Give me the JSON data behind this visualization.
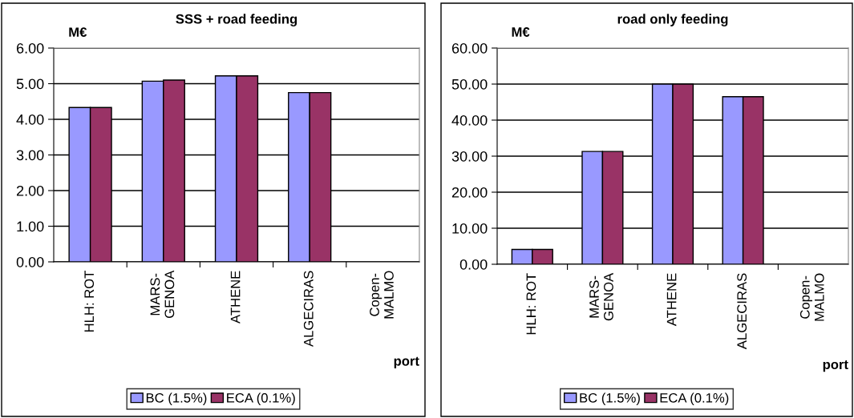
{
  "chart_data": [
    {
      "type": "bar",
      "title": "SSS + road feeding",
      "ylabel": "M€",
      "xlabel": "port",
      "categories": [
        "HLH: ROT",
        "MARS-\nGENOA",
        "ATHENE",
        "ALGECIRAS",
        "Copen-\nMALMO"
      ],
      "series": [
        {
          "name": "BC (1.5%)",
          "color": "#9999ff",
          "values": [
            4.33,
            5.07,
            5.22,
            4.75,
            null
          ]
        },
        {
          "name": "ECA (0.1%)",
          "color": "#993366",
          "values": [
            4.33,
            5.1,
            5.22,
            4.75,
            null
          ]
        }
      ],
      "ylim": [
        0,
        6
      ],
      "yticks": [
        {
          "value": 0,
          "label": "0.00"
        },
        {
          "value": 1,
          "label": "1.00"
        },
        {
          "value": 2,
          "label": "2.00"
        },
        {
          "value": 3,
          "label": "3.00"
        },
        {
          "value": 4,
          "label": "4.00"
        },
        {
          "value": 5,
          "label": "5.00"
        },
        {
          "value": 6,
          "label": "6.00"
        }
      ],
      "grid": "y",
      "legend": "bottom"
    },
    {
      "type": "bar",
      "title": "road only feeding",
      "ylabel": "M€",
      "xlabel": "port",
      "categories": [
        "HLH: ROT",
        "MARS-\nGENOA",
        "ATHENE",
        "ALGECIRAS",
        "Copen-\nMALMO"
      ],
      "series": [
        {
          "name": "BC (1.5%)",
          "color": "#9999ff",
          "values": [
            4.1,
            31.3,
            50.0,
            46.5,
            null
          ]
        },
        {
          "name": "ECA (0.1%)",
          "color": "#993366",
          "values": [
            4.1,
            31.3,
            50.0,
            46.5,
            null
          ]
        }
      ],
      "ylim": [
        0,
        60
      ],
      "yticks": [
        {
          "value": 0,
          "label": "0.00"
        },
        {
          "value": 10,
          "label": "10.00"
        },
        {
          "value": 20,
          "label": "20.00"
        },
        {
          "value": 30,
          "label": "30.00"
        },
        {
          "value": 40,
          "label": "40.00"
        },
        {
          "value": 50,
          "label": "50.00"
        },
        {
          "value": 60,
          "label": "60.00"
        }
      ],
      "grid": "y",
      "legend": "bottom"
    }
  ]
}
